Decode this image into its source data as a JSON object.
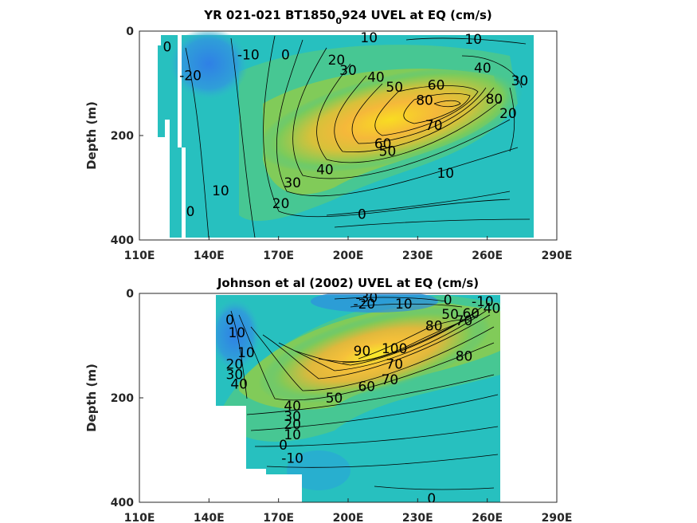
{
  "colors": {
    "axis": "#262626",
    "contour_line": "#000000",
    "cmap_low": "#2e7de6",
    "cmap_mid": "#1ebfb8",
    "cmap_high": "#f5c832",
    "cmap_max": "#f9dc22"
  },
  "chart_data": [
    {
      "type": "heatmap",
      "title": "YR 021-021 BT1850_0924 UVEL at EQ (cm/s)",
      "title_parts": [
        "YR 021-021 BT1850",
        "0",
        "924 UVEL at EQ (cm/s)"
      ],
      "xlabel": "",
      "ylabel": "Depth (m)",
      "x_ticks": [
        "110E",
        "140E",
        "170E",
        "200E",
        "230E",
        "260E",
        "290E"
      ],
      "y_ticks": [
        "0",
        "200",
        "400"
      ],
      "xlim": [
        110,
        290
      ],
      "ylim": [
        0,
        400
      ],
      "y_reversed": true,
      "data_lon_range": [
        117,
        280
      ],
      "core": {
        "lon": 228,
        "depth": 140,
        "max_speed": 90
      },
      "contour_labels": [
        {
          "text": "0",
          "lon": 122,
          "depth": 30
        },
        {
          "text": "-20",
          "lon": 132,
          "depth": 85
        },
        {
          "text": "-10",
          "lon": 157,
          "depth": 45
        },
        {
          "text": "0",
          "lon": 173,
          "depth": 45
        },
        {
          "text": "10",
          "lon": 209,
          "depth": 12
        },
        {
          "text": "10",
          "lon": 254,
          "depth": 15
        },
        {
          "text": "20",
          "lon": 195,
          "depth": 55
        },
        {
          "text": "30",
          "lon": 200,
          "depth": 75
        },
        {
          "text": "40",
          "lon": 212,
          "depth": 88
        },
        {
          "text": "40",
          "lon": 258,
          "depth": 70
        },
        {
          "text": "50",
          "lon": 220,
          "depth": 107
        },
        {
          "text": "60",
          "lon": 238,
          "depth": 103
        },
        {
          "text": "80",
          "lon": 233,
          "depth": 132
        },
        {
          "text": "80",
          "lon": 263,
          "depth": 130
        },
        {
          "text": "30",
          "lon": 274,
          "depth": 95
        },
        {
          "text": "20",
          "lon": 269,
          "depth": 157
        },
        {
          "text": "70",
          "lon": 237,
          "depth": 180
        },
        {
          "text": "60",
          "lon": 215,
          "depth": 215
        },
        {
          "text": "50",
          "lon": 217,
          "depth": 230
        },
        {
          "text": "40",
          "lon": 190,
          "depth": 265
        },
        {
          "text": "30",
          "lon": 176,
          "depth": 290
        },
        {
          "text": "10",
          "lon": 242,
          "depth": 272
        },
        {
          "text": "10",
          "lon": 145,
          "depth": 305
        },
        {
          "text": "20",
          "lon": 171,
          "depth": 330
        },
        {
          "text": "0",
          "lon": 132,
          "depth": 345
        },
        {
          "text": "0",
          "lon": 206,
          "depth": 350
        }
      ]
    },
    {
      "type": "heatmap",
      "title": "Johnson et al (2002) UVEL at EQ (cm/s)",
      "xlabel": "",
      "ylabel": "Depth (m)",
      "x_ticks": [
        "110E",
        "140E",
        "170E",
        "200E",
        "230E",
        "260E",
        "290E"
      ],
      "y_ticks": [
        "0",
        "200",
        "400"
      ],
      "xlim": [
        110,
        290
      ],
      "ylim": [
        0,
        400
      ],
      "y_reversed": true,
      "data_lon_range": [
        143,
        265
      ],
      "core": {
        "lon": 218,
        "depth": 130,
        "max_speed": 100
      },
      "contour_labels": [
        {
          "text": "-30",
          "lon": 208,
          "depth": 8
        },
        {
          "text": "-20",
          "lon": 207,
          "depth": 20
        },
        {
          "text": "10",
          "lon": 224,
          "depth": 20
        },
        {
          "text": "0",
          "lon": 243,
          "depth": 12
        },
        {
          "text": "-10",
          "lon": 258,
          "depth": 15
        },
        {
          "text": "50",
          "lon": 244,
          "depth": 40
        },
        {
          "text": "60",
          "lon": 253,
          "depth": 38
        },
        {
          "text": "40",
          "lon": 262,
          "depth": 28
        },
        {
          "text": "80",
          "lon": 237,
          "depth": 62
        },
        {
          "text": "70",
          "lon": 250,
          "depth": 52
        },
        {
          "text": "0",
          "lon": 149,
          "depth": 50
        },
        {
          "text": "10",
          "lon": 152,
          "depth": 75
        },
        {
          "text": "10",
          "lon": 156,
          "depth": 113
        },
        {
          "text": "20",
          "lon": 151,
          "depth": 135
        },
        {
          "text": "30",
          "lon": 151,
          "depth": 155
        },
        {
          "text": "40",
          "lon": 153,
          "depth": 173
        },
        {
          "text": "90",
          "lon": 206,
          "depth": 110
        },
        {
          "text": "100",
          "lon": 220,
          "depth": 105
        },
        {
          "text": "70",
          "lon": 220,
          "depth": 135
        },
        {
          "text": "80",
          "lon": 250,
          "depth": 120
        },
        {
          "text": "60",
          "lon": 208,
          "depth": 178
        },
        {
          "text": "70",
          "lon": 218,
          "depth": 165
        },
        {
          "text": "50",
          "lon": 194,
          "depth": 200
        },
        {
          "text": "40",
          "lon": 176,
          "depth": 215
        },
        {
          "text": "30",
          "lon": 176,
          "depth": 235
        },
        {
          "text": "20",
          "lon": 176,
          "depth": 250
        },
        {
          "text": "10",
          "lon": 176,
          "depth": 270
        },
        {
          "text": "0",
          "lon": 172,
          "depth": 290
        },
        {
          "text": "-10",
          "lon": 176,
          "depth": 315
        },
        {
          "text": "0",
          "lon": 236,
          "depth": 392
        }
      ]
    }
  ]
}
